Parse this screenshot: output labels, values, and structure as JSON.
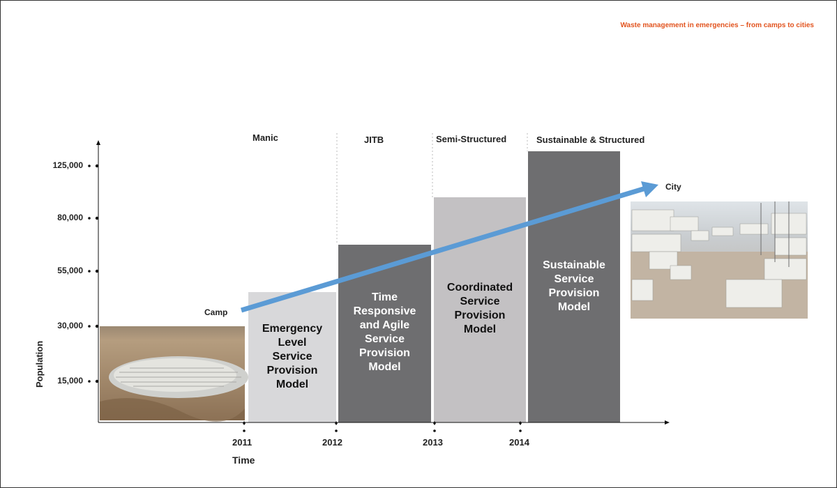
{
  "header": {
    "title": "Waste management in emergencies – from camps to cities"
  },
  "phases": [
    "Manic",
    "JITB",
    "Semi-Structured",
    "Sustainable & Structured"
  ],
  "y_axis": {
    "title": "Population",
    "ticks": [
      "125,000",
      "80,000",
      "55,000",
      "30,000",
      "15,000"
    ]
  },
  "x_axis": {
    "title": "Time",
    "ticks": [
      "2011",
      "2012",
      "2013",
      "2014"
    ]
  },
  "blocks": [
    {
      "label_lines": [
        "Emergency",
        "Level",
        "Service",
        "Provision",
        "Model"
      ],
      "fill": "#d8d8da",
      "text_color": "#111111"
    },
    {
      "label_lines": [
        "Time",
        "Responsive",
        "and Agile",
        "Service",
        "Provision",
        "Model"
      ],
      "fill": "#6e6e70",
      "text_color": "#ffffff"
    },
    {
      "label_lines": [
        "Coordinated",
        "Service",
        "Provision",
        "Model"
      ],
      "fill": "#c3c1c3",
      "text_color": "#111111"
    },
    {
      "label_lines": [
        "Sustainable",
        "Service",
        "Provision",
        "Model"
      ],
      "fill": "#6e6e70",
      "text_color": "#ffffff"
    }
  ],
  "arrow": {
    "start_label": "Camp",
    "end_label": "City",
    "color": "#5b9bd5"
  },
  "colors": {
    "accent": "#e2541f",
    "axis": "#111111"
  }
}
